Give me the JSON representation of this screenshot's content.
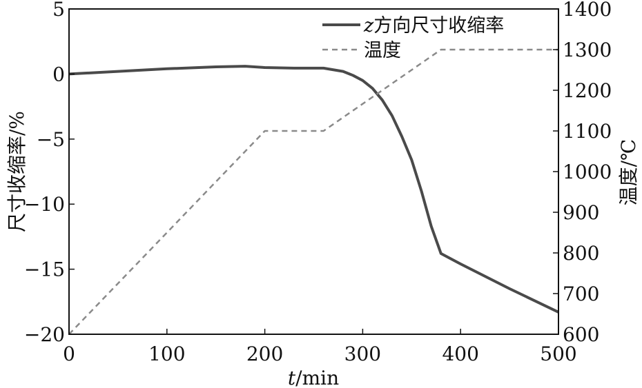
{
  "chart_data": {
    "type": "line",
    "xlabel": {
      "var": "t",
      "unit": "/min"
    },
    "ylabel_left": "尺寸收缩率/%",
    "ylabel_right": "温度/℃",
    "xlim": [
      0,
      500
    ],
    "ylim_left": [
      -20,
      5
    ],
    "ylim_right": [
      600,
      1400
    ],
    "x_ticks": [
      "0",
      "100",
      "200",
      "300",
      "400",
      "500"
    ],
    "y_left_ticks": [
      "5",
      "0",
      "−5",
      "−10",
      "−15",
      "−20"
    ],
    "y_right_ticks": [
      "1400",
      "1300",
      "1200",
      "1100",
      "1000",
      "900",
      "800",
      "700",
      "600"
    ],
    "grid": false,
    "legend_position": "top-right",
    "legend": [
      {
        "var": "z",
        "text": "方向尺寸收缩率"
      },
      {
        "text": "温度"
      }
    ],
    "series": [
      {
        "axis": "left",
        "style": "solid",
        "color": "#4a4a4a",
        "x": [
          0,
          50,
          100,
          150,
          180,
          200,
          230,
          260,
          280,
          290,
          300,
          310,
          320,
          330,
          340,
          350,
          360,
          370,
          380,
          400,
          450,
          500
        ],
        "y": [
          0.0,
          0.2,
          0.4,
          0.55,
          0.6,
          0.5,
          0.45,
          0.45,
          0.2,
          -0.1,
          -0.5,
          -1.1,
          -2.0,
          -3.2,
          -4.8,
          -6.6,
          -9.0,
          -11.7,
          -13.8,
          -14.6,
          -16.5,
          -18.3
        ]
      },
      {
        "axis": "right",
        "style": "dashed",
        "color": "#8a8a8a",
        "x": [
          0,
          200,
          260,
          380,
          500
        ],
        "y": [
          600,
          1100,
          1100,
          1300,
          1300
        ]
      }
    ]
  }
}
